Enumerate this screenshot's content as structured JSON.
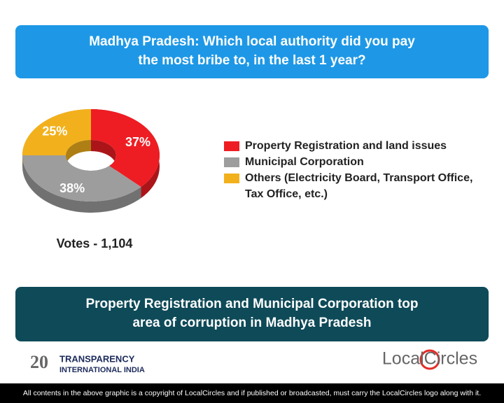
{
  "header": {
    "title": "Madhya Pradesh: Which local authority did you pay the most bribe to, in the last 1 year?"
  },
  "chart_data": {
    "type": "pie",
    "donut": true,
    "categories": [
      "Property Registration and land issues",
      "Municipal Corporation",
      "Others (Electricity Board, Transport Office, Tax Office, etc.)"
    ],
    "values": [
      37,
      38,
      25
    ],
    "value_labels": [
      "37%",
      "38%",
      "25%"
    ],
    "colors": [
      "#ee1d23",
      "#9d9d9d",
      "#f2b11c"
    ],
    "annotation": "Votes - 1,104"
  },
  "banner": {
    "text": "Property Registration and Municipal Corporation top area of corruption in Madhya Pradesh"
  },
  "logos": {
    "left_number": "20",
    "left_line1": "TRANSPARENCY",
    "left_line2": "INTERNATIONAL INDIA",
    "right": "LocalCircles"
  },
  "footer": {
    "text": "All contents in the above graphic is a copyright of LocalCircles and if published or broadcasted, must carry the LocalCircles logo along with it."
  }
}
